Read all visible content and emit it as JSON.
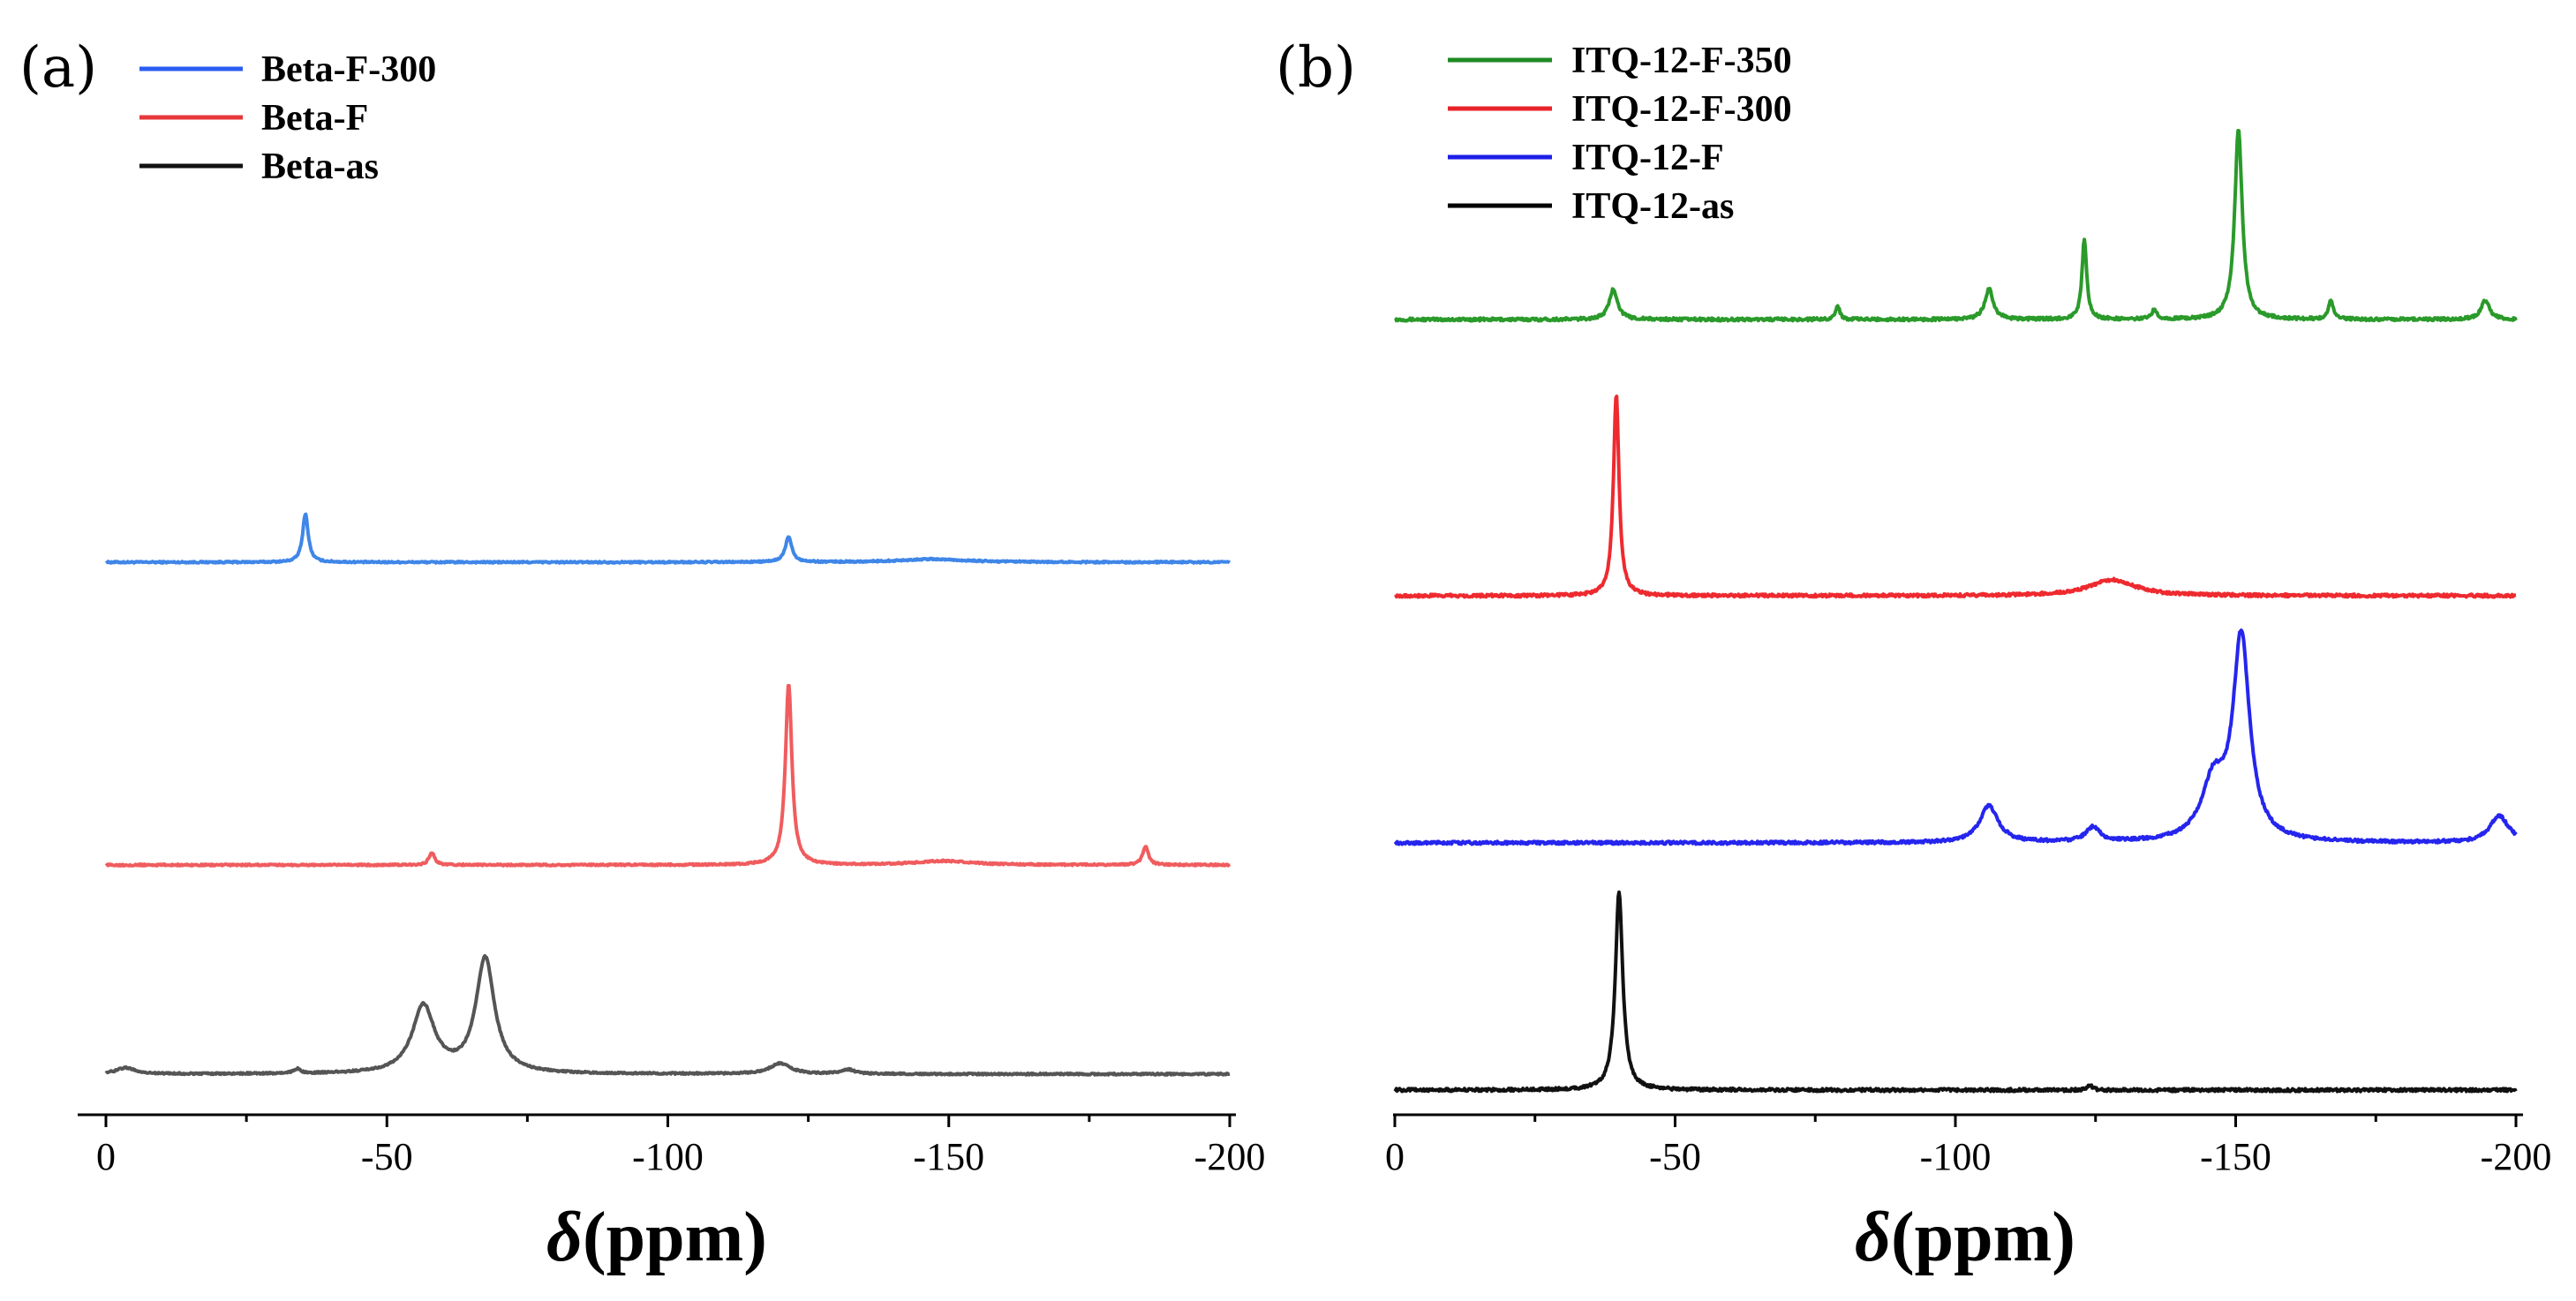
{
  "colors": {
    "axis": "#000000"
  },
  "chart_data": [
    {
      "type": "line",
      "panel_label": "(a)",
      "xlabel_symbol": "δ",
      "xlabel_unit": "(ppm)",
      "xlim": [
        0,
        -200
      ],
      "xticks": [
        0,
        -50,
        -100,
        -150,
        -200
      ],
      "xtick_labels": [
        "0",
        "-50",
        "-100",
        "-150",
        "-200"
      ],
      "yaxis": "none",
      "legend": [
        {
          "name": "Beta-F-300",
          "color": "#2a5df0"
        },
        {
          "name": "Beta-F",
          "color": "#e8383b"
        },
        {
          "name": "Beta-as",
          "color": "#111111"
        }
      ],
      "series": [
        {
          "name": "Beta-F-300",
          "color": "#3f86e8",
          "baseline": 0.0,
          "peaks": [
            {
              "center": -35.5,
              "height": 0.55,
              "width": 0.6
            },
            {
              "center": -121.5,
              "height": 0.29,
              "width": 0.7
            },
            {
              "center": -147,
              "height": 0.035,
              "width": 7
            }
          ]
        },
        {
          "name": "Beta-F",
          "color": "#f05c5e",
          "baseline": 0.0,
          "peaks": [
            {
              "center": -58,
              "height": 0.14,
              "width": 0.6
            },
            {
              "center": -121.5,
              "height": 2.05,
              "width": 0.7
            },
            {
              "center": -149,
              "height": 0.045,
              "width": 6
            },
            {
              "center": -185,
              "height": 0.21,
              "width": 0.6
            }
          ]
        },
        {
          "name": "Beta-as",
          "color": "#555555",
          "baseline": 0.0,
          "peaks": [
            {
              "center": -3.5,
              "height": 0.07,
              "width": 2
            },
            {
              "center": -34,
              "height": 0.05,
              "width": 0.7
            },
            {
              "center": -56.5,
              "height": 0.76,
              "width": 2.4
            },
            {
              "center": -67.5,
              "height": 1.3,
              "width": 2.0
            },
            {
              "center": -120,
              "height": 0.12,
              "width": 2.2
            },
            {
              "center": -132,
              "height": 0.05,
              "width": 1.5
            }
          ]
        }
      ]
    },
    {
      "type": "line",
      "panel_label": "(b)",
      "xlabel_symbol": "δ",
      "xlabel_unit": "(ppm)",
      "xlim": [
        0,
        -200
      ],
      "xticks": [
        0,
        -50,
        -100,
        -150,
        -200
      ],
      "xtick_labels": [
        "0",
        "-50",
        "-100",
        "-150",
        "-200"
      ],
      "yaxis": "none",
      "legend": [
        {
          "name": "ITQ-12-F-350",
          "color": "#1f8a24"
        },
        {
          "name": "ITQ-12-F-300",
          "color": "#e8232a"
        },
        {
          "name": "ITQ-12-F",
          "color": "#1e1ee8"
        },
        {
          "name": "ITQ-12-as",
          "color": "#000000"
        }
      ],
      "series": [
        {
          "name": "ITQ-12-F-350",
          "color": "#2a9a2a",
          "baseline": 0.0,
          "peaks": [
            {
              "center": -39,
              "height": 0.19,
              "width": 0.9
            },
            {
              "center": -79,
              "height": 0.08,
              "width": 0.5
            },
            {
              "center": -106,
              "height": 0.19,
              "width": 0.9
            },
            {
              "center": -123,
              "height": 0.5,
              "width": 0.5
            },
            {
              "center": -135.5,
              "height": 0.06,
              "width": 0.6
            },
            {
              "center": -150.5,
              "height": 1.2,
              "width": 0.8
            },
            {
              "center": -167,
              "height": 0.12,
              "width": 0.5
            },
            {
              "center": -194.5,
              "height": 0.12,
              "width": 0.9
            }
          ]
        },
        {
          "name": "ITQ-12-F-300",
          "color": "#ee2a2f",
          "baseline": 0.0,
          "peaks": [
            {
              "center": -39.5,
              "height": 1.27,
              "width": 0.6
            },
            {
              "center": -128,
              "height": 0.1,
              "width": 5
            }
          ]
        },
        {
          "name": "ITQ-12-F",
          "color": "#2525ee",
          "baseline": 0.0,
          "peaks": [
            {
              "center": -106,
              "height": 0.23,
              "width": 2
            },
            {
              "center": -124.5,
              "height": 0.09,
              "width": 1.5
            },
            {
              "center": -146,
              "height": 0.35,
              "width": 2.5
            },
            {
              "center": -151,
              "height": 1.27,
              "width": 1.8
            },
            {
              "center": -197,
              "height": 0.17,
              "width": 2
            }
          ]
        },
        {
          "name": "ITQ-12-as",
          "color": "#111111",
          "baseline": 0.0,
          "peaks": [
            {
              "center": -40,
              "height": 1.25,
              "width": 0.8
            },
            {
              "center": -124,
              "height": 0.03,
              "width": 0.6
            }
          ]
        }
      ]
    }
  ]
}
